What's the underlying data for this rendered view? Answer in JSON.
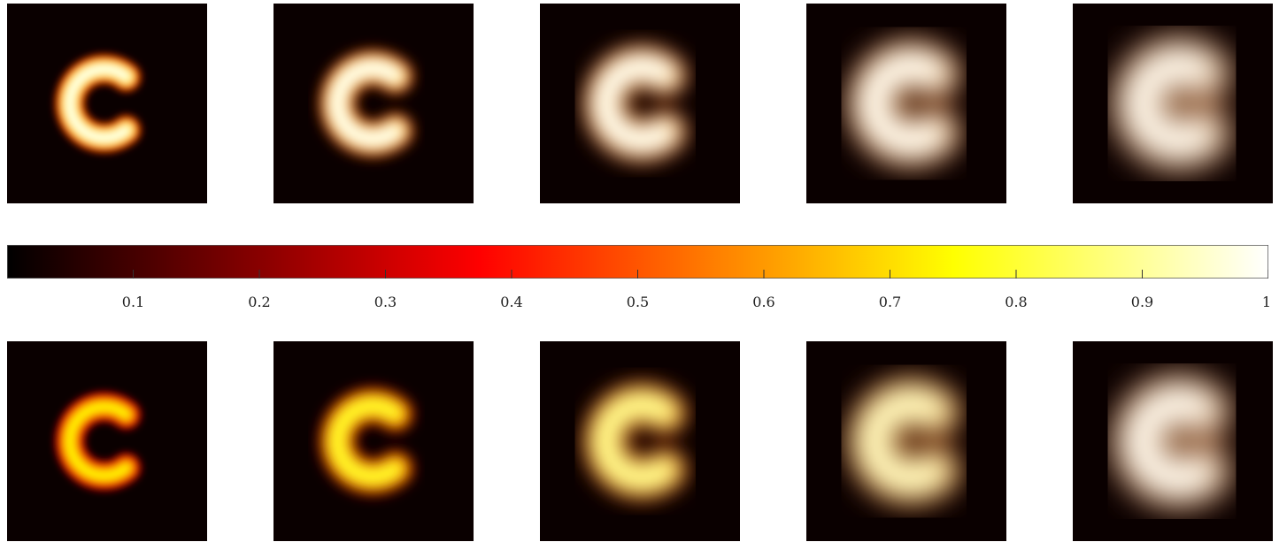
{
  "colorbar": {
    "colormap": "hot",
    "range": [
      0,
      1
    ],
    "ticks": [
      "0.1",
      "0.2",
      "0.3",
      "0.4",
      "0.5",
      "0.6",
      "0.7",
      "0.8",
      "0.9",
      "1"
    ],
    "tick_values": [
      0.1,
      0.2,
      0.3,
      0.4,
      0.5,
      0.6,
      0.7,
      0.8,
      0.9,
      1.0
    ]
  },
  "rows": [
    {
      "panels": [
        {
          "blur": 0.15,
          "peak": 1.0,
          "shape": "c"
        },
        {
          "blur": 0.35,
          "peak": 1.0,
          "shape": "c"
        },
        {
          "blur": 0.6,
          "peak": 1.0,
          "shape": "c"
        },
        {
          "blur": 0.85,
          "peak": 1.0,
          "shape": "c"
        },
        {
          "blur": 1.0,
          "peak": 1.0,
          "shape": "c"
        }
      ]
    },
    {
      "panels": [
        {
          "blur": 0.15,
          "peak": 0.75,
          "shape": "c"
        },
        {
          "blur": 0.35,
          "peak": 0.8,
          "shape": "c"
        },
        {
          "blur": 0.6,
          "peak": 0.9,
          "shape": "c"
        },
        {
          "blur": 0.85,
          "peak": 0.95,
          "shape": "c"
        },
        {
          "blur": 1.0,
          "peak": 1.0,
          "shape": "c"
        }
      ]
    }
  ]
}
